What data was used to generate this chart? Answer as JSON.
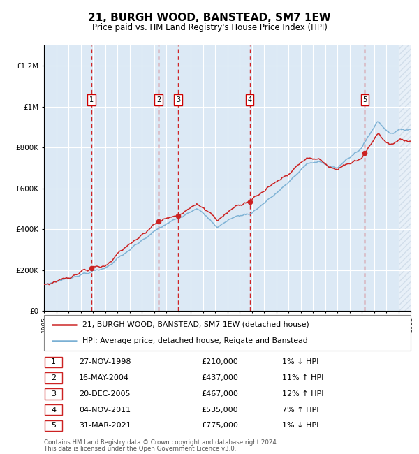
{
  "title": "21, BURGH WOOD, BANSTEAD, SM7 1EW",
  "subtitle": "Price paid vs. HM Land Registry's House Price Index (HPI)",
  "legend_line1": "21, BURGH WOOD, BANSTEAD, SM7 1EW (detached house)",
  "legend_line2": "HPI: Average price, detached house, Reigate and Banstead",
  "footer1": "Contains HM Land Registry data © Crown copyright and database right 2024.",
  "footer2": "This data is licensed under the Open Government Licence v3.0.",
  "x_start_year": 1995,
  "x_end_year": 2025,
  "ylim": [
    0,
    1300000
  ],
  "yticks": [
    0,
    200000,
    400000,
    600000,
    800000,
    1000000,
    1200000
  ],
  "ytick_labels": [
    "£0",
    "£200K",
    "£400K",
    "£600K",
    "£800K",
    "£1M",
    "£1.2M"
  ],
  "sale_events": [
    {
      "num": 1,
      "year": 1998.9,
      "price": 210000,
      "date": "27-NOV-1998",
      "pct": "1%",
      "dir": "↓"
    },
    {
      "num": 2,
      "year": 2004.37,
      "price": 437000,
      "date": "16-MAY-2004",
      "pct": "11%",
      "dir": "↑"
    },
    {
      "num": 3,
      "year": 2005.97,
      "price": 467000,
      "date": "20-DEC-2005",
      "pct": "12%",
      "dir": "↑"
    },
    {
      "num": 4,
      "year": 2011.84,
      "price": 535000,
      "date": "04-NOV-2011",
      "pct": "7%",
      "dir": "↑"
    },
    {
      "num": 5,
      "year": 2021.25,
      "price": 775000,
      "date": "31-MAR-2021",
      "pct": "1%",
      "dir": "↓"
    }
  ],
  "hpi_color": "#7ab0d4",
  "price_color": "#cc2222",
  "bg_color": "#dce9f5",
  "grid_color": "#ffffff",
  "sale_line_color": "#cc0000",
  "table_rows": [
    [
      "1",
      "27-NOV-1998",
      "£210,000",
      "1% ↓ HPI"
    ],
    [
      "2",
      "16-MAY-2004",
      "£437,000",
      "11% ↑ HPI"
    ],
    [
      "3",
      "20-DEC-2005",
      "£467,000",
      "12% ↑ HPI"
    ],
    [
      "4",
      "04-NOV-2011",
      "£535,000",
      "7% ↑ HPI"
    ],
    [
      "5",
      "31-MAR-2021",
      "£775,000",
      "1% ↓ HPI"
    ]
  ]
}
